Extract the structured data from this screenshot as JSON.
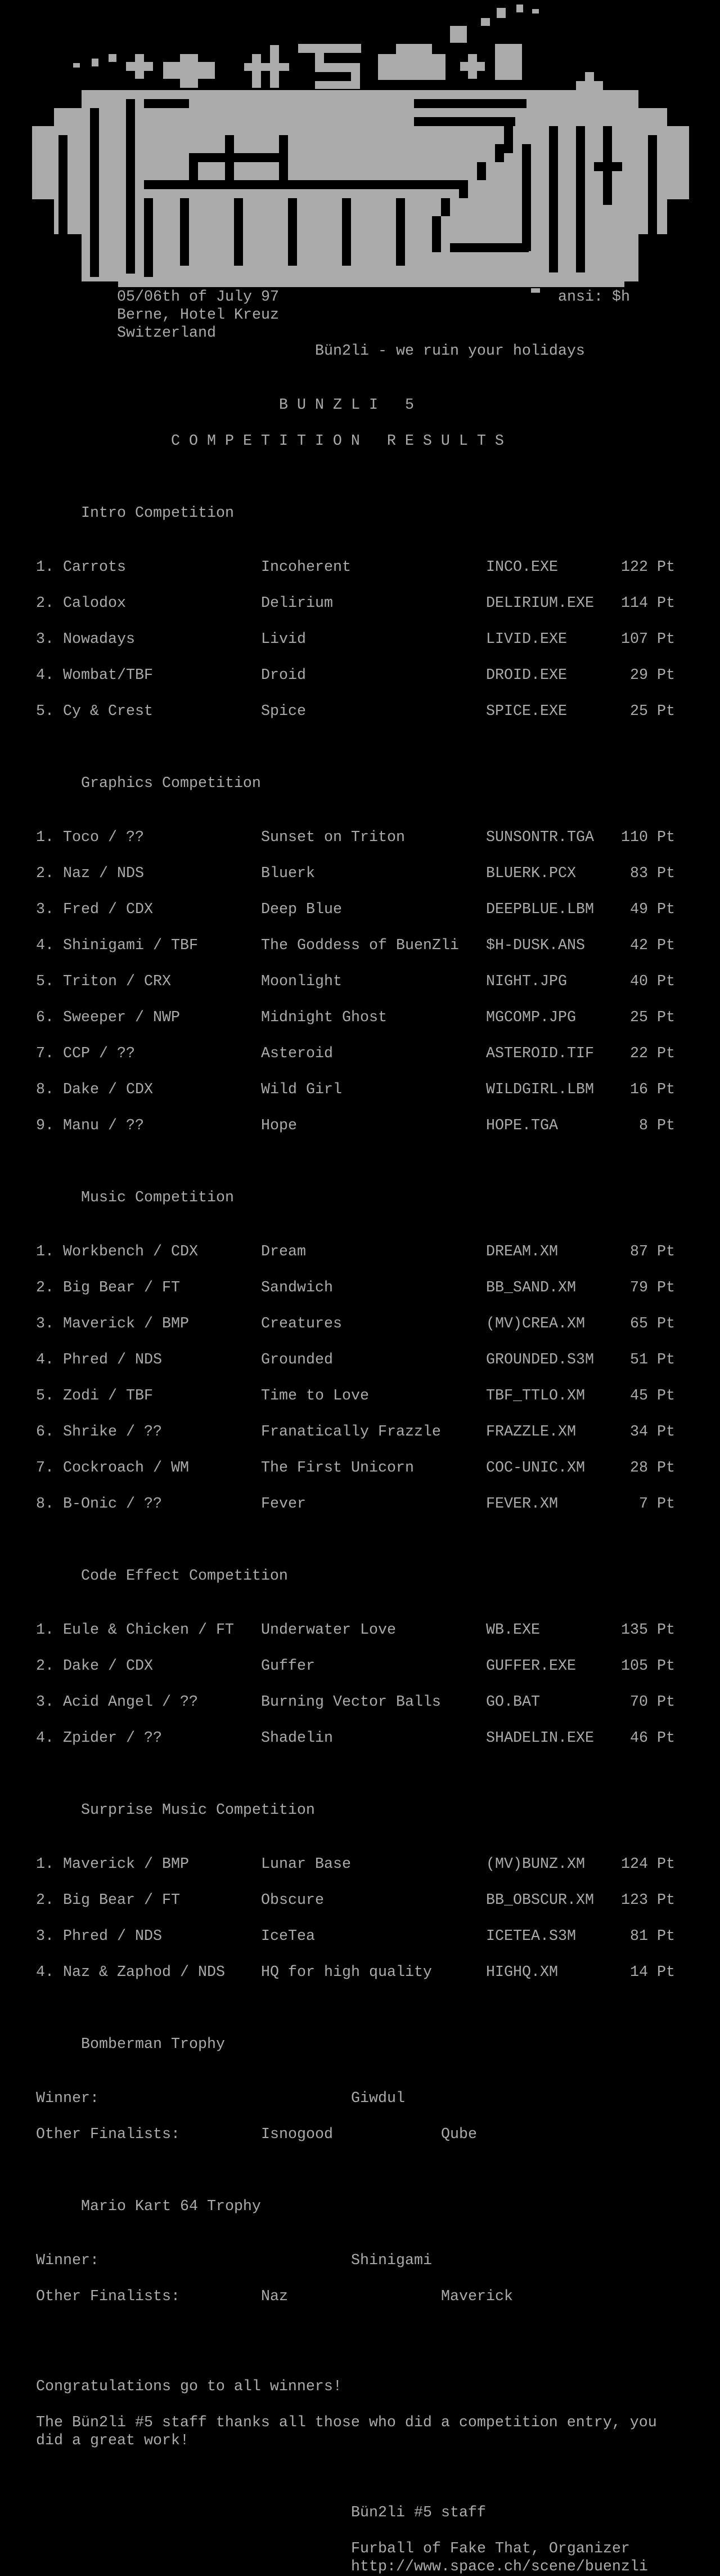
{
  "colors": {
    "background": "#000000",
    "text": "#aaaaaa",
    "logo": "#aaaaaa"
  },
  "header": {
    "logo_text": "#5 Bünzli",
    "date": "05/06th of July 97",
    "location": "Berne, Hotel Kreuz",
    "country": "Switzerland",
    "ansi_credit": "ansi: $h",
    "tagline": "Bün2li - we ruin your holidays"
  },
  "title": "B U N Z L I   5",
  "subtitle": "C O M P E T I T I O N   R E S U L T S",
  "competitions": [
    {
      "title": "Intro Competition",
      "entries": [
        {
          "rank": "1.",
          "author": "Carrots",
          "entry": "Incoherent",
          "file": "INCO.EXE",
          "points": "122 Pt"
        },
        {
          "rank": "2.",
          "author": "Calodox",
          "entry": "Delirium",
          "file": "DELIRIUM.EXE",
          "points": "114 Pt"
        },
        {
          "rank": "3.",
          "author": "Nowadays",
          "entry": "Livid",
          "file": "LIVID.EXE",
          "points": "107 Pt"
        },
        {
          "rank": "4.",
          "author": "Wombat/TBF",
          "entry": "Droid",
          "file": "DROID.EXE",
          "points": "29 Pt"
        },
        {
          "rank": "5.",
          "author": "Cy & Crest",
          "entry": "Spice",
          "file": "SPICE.EXE",
          "points": "25 Pt"
        }
      ]
    },
    {
      "title": "Graphics Competition",
      "entries": [
        {
          "rank": "1.",
          "author": "Toco / ??",
          "entry": "Sunset on Triton",
          "file": "SUNSONTR.TGA",
          "points": "110 Pt"
        },
        {
          "rank": "2.",
          "author": "Naz / NDS",
          "entry": "Bluerk",
          "file": "BLUERK.PCX",
          "points": "83 Pt"
        },
        {
          "rank": "3.",
          "author": "Fred / CDX",
          "entry": "Deep Blue",
          "file": "DEEPBLUE.LBM",
          "points": "49 Pt"
        },
        {
          "rank": "4.",
          "author": "Shinigami / TBF",
          "entry": "The Goddess of BuenZli",
          "file": "$H-DUSK.ANS",
          "points": "42 Pt"
        },
        {
          "rank": "5.",
          "author": "Triton / CRX",
          "entry": "Moonlight",
          "file": "NIGHT.JPG",
          "points": "40 Pt"
        },
        {
          "rank": "6.",
          "author": "Sweeper / NWP",
          "entry": "Midnight Ghost",
          "file": "MGCOMP.JPG",
          "points": "25 Pt"
        },
        {
          "rank": "7.",
          "author": "CCP / ??",
          "entry": "Asteroid",
          "file": "ASTEROID.TIF",
          "points": "22 Pt"
        },
        {
          "rank": "8.",
          "author": "Dake / CDX",
          "entry": "Wild Girl",
          "file": "WILDGIRL.LBM",
          "points": "16 Pt"
        },
        {
          "rank": "9.",
          "author": "Manu / ??",
          "entry": "Hope",
          "file": "HOPE.TGA",
          "points": "8 Pt"
        }
      ]
    },
    {
      "title": "Music Competition",
      "entries": [
        {
          "rank": "1.",
          "author": "Workbench / CDX",
          "entry": "Dream",
          "file": "DREAM.XM",
          "points": "87 Pt"
        },
        {
          "rank": "2.",
          "author": "Big Bear / FT",
          "entry": "Sandwich",
          "file": "BB_SAND.XM",
          "points": "79 Pt"
        },
        {
          "rank": "3.",
          "author": "Maverick / BMP",
          "entry": "Creatures",
          "file": "(MV)CREA.XM",
          "points": "65 Pt"
        },
        {
          "rank": "4.",
          "author": "Phred / NDS",
          "entry": "Grounded",
          "file": "GROUNDED.S3M",
          "points": "51 Pt"
        },
        {
          "rank": "5.",
          "author": "Zodi / TBF",
          "entry": "Time to Love",
          "file": "TBF_TTLO.XM",
          "points": "45 Pt"
        },
        {
          "rank": "6.",
          "author": "Shrike / ??",
          "entry": "Franatically Frazzle",
          "file": "FRAZZLE.XM",
          "points": "34 Pt"
        },
        {
          "rank": "7.",
          "author": "Cockroach / WM",
          "entry": "The First Unicorn",
          "file": "COC-UNIC.XM",
          "points": "28 Pt"
        },
        {
          "rank": "8.",
          "author": "B-Onic / ??",
          "entry": "Fever",
          "file": "FEVER.XM",
          "points": "7 Pt"
        }
      ]
    },
    {
      "title": "Code Effect Competition",
      "entries": [
        {
          "rank": "1.",
          "author": "Eule & Chicken / FT",
          "entry": "Underwater Love",
          "file": "WB.EXE",
          "points": "135 Pt"
        },
        {
          "rank": "2.",
          "author": "Dake / CDX",
          "entry": "Guffer",
          "file": "GUFFER.EXE",
          "points": "105 Pt"
        },
        {
          "rank": "3.",
          "author": "Acid Angel / ??",
          "entry": "Burning Vector Balls",
          "file": "GO.BAT",
          "points": "70 Pt"
        },
        {
          "rank": "4.",
          "author": "Zpider / ??",
          "entry": "Shadelin",
          "file": "SHADELIN.EXE",
          "points": "46 Pt"
        }
      ]
    },
    {
      "title": "Surprise Music Competition",
      "entries": [
        {
          "rank": "1.",
          "author": "Maverick / BMP",
          "entry": "Lunar Base",
          "file": "(MV)BUNZ.XM",
          "points": "124 Pt"
        },
        {
          "rank": "2.",
          "author": "Big Bear / FT",
          "entry": "Obscure",
          "file": "BB_OBSCUR.XM",
          "points": "123 Pt"
        },
        {
          "rank": "3.",
          "author": "Phred / NDS",
          "entry": "IceTea",
          "file": "ICETEA.S3M",
          "points": "81 Pt"
        },
        {
          "rank": "4.",
          "author": "Naz & Zaphod / NDS",
          "entry": "HQ for high quality",
          "file": "HIGHQ.XM",
          "points": "14 Pt"
        }
      ]
    }
  ],
  "trophies": [
    {
      "title": "Bomberman Trophy",
      "winner_label": "Winner:",
      "winner": "Giwdul",
      "finalists_label": "Other Finalists:",
      "finalists": [
        "Isnogood",
        "Qube"
      ]
    },
    {
      "title": "Mario Kart 64 Trophy",
      "winner_label": "Winner:",
      "winner": "Shinigami",
      "finalists_label": "Other Finalists:",
      "finalists": [
        "Naz",
        "Maverick"
      ]
    }
  ],
  "closing": {
    "congrats": "Congratulations go to all winners!",
    "thanks_line1": "The Bün2li #5 staff thanks all those who did a competition entry, you",
    "thanks_line2": "did a great work!",
    "signature": "Bün2li #5 staff",
    "organizer": "Furball of Fake That, Organizer",
    "url": "http://www.space.ch/scene/buenzli"
  }
}
